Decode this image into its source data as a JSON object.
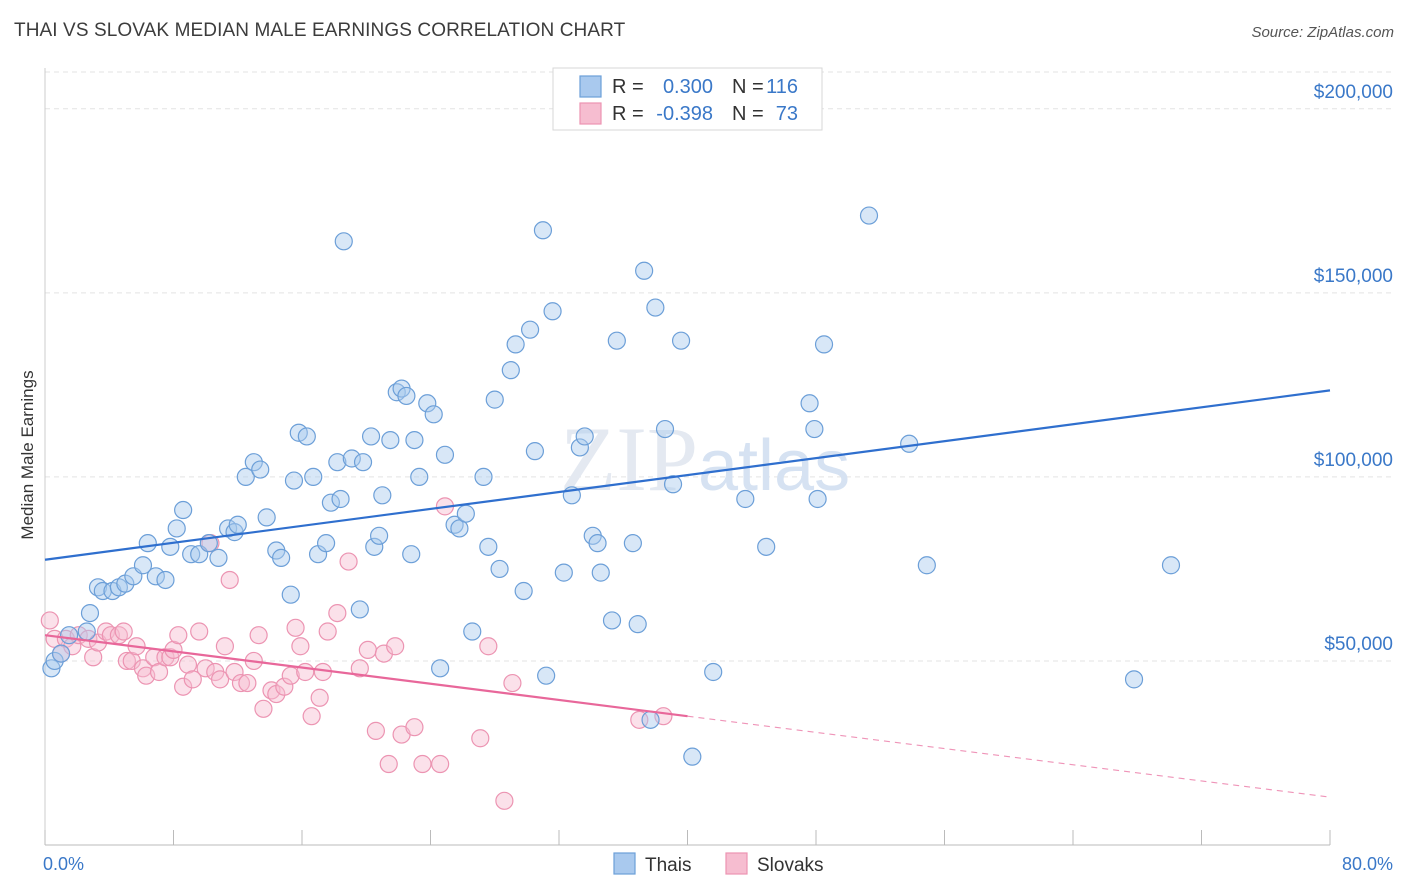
{
  "title": "THAI VS SLOVAK MEDIAN MALE EARNINGS CORRELATION CHART",
  "source": "Source: ZipAtlas.com",
  "watermark": "ZIPatlas",
  "colors": {
    "thais_fill": "#a9c9ee",
    "thais_stroke": "#6c9fd8",
    "thais_line": "#2f6fce",
    "slovaks_fill": "#f6bdd0",
    "slovaks_stroke": "#ec94b2",
    "slovaks_line": "#e8679a",
    "grid": "#e3e3e3",
    "axis_text": "#3a78c8"
  },
  "legend": {
    "rows": [
      {
        "r_label": "R =",
        "r_value": "0.300",
        "n_label": "N =",
        "n_value": "116"
      },
      {
        "r_label": "R =",
        "r_value": "-0.398",
        "n_label": "N =",
        "n_value": "73"
      }
    ]
  },
  "chart_data": {
    "type": "scatter",
    "title": "THAI VS SLOVAK MEDIAN MALE EARNINGS CORRELATION CHART",
    "xlabel": "",
    "ylabel": "Median Male Earnings",
    "xlim": [
      0,
      80
    ],
    "ylim": [
      0,
      210000
    ],
    "x_tick_labels": [
      "0.0%",
      "80.0%"
    ],
    "y_ticks": [
      50000,
      100000,
      150000,
      200000
    ],
    "y_tick_labels": [
      "$50,000",
      "$100,000",
      "$150,000",
      "$200,000"
    ],
    "grid": true,
    "legend_position": "top-center",
    "series": [
      {
        "name": "Thais",
        "r": 0.3,
        "n": 116,
        "trend": {
          "x": [
            0,
            80
          ],
          "y": [
            77500,
            123500
          ]
        },
        "points": [
          [
            0.4,
            48000
          ],
          [
            0.6,
            50000
          ],
          [
            1.0,
            52000
          ],
          [
            1.5,
            57000
          ],
          [
            2.6,
            58000
          ],
          [
            2.8,
            63000
          ],
          [
            3.3,
            70000
          ],
          [
            3.6,
            69000
          ],
          [
            4.2,
            69000
          ],
          [
            4.6,
            70000
          ],
          [
            5.0,
            71000
          ],
          [
            5.5,
            73000
          ],
          [
            6.1,
            76000
          ],
          [
            6.4,
            82000
          ],
          [
            6.9,
            73000
          ],
          [
            7.5,
            72000
          ],
          [
            7.8,
            81000
          ],
          [
            8.2,
            86000
          ],
          [
            8.6,
            91000
          ],
          [
            9.1,
            79000
          ],
          [
            9.6,
            79000
          ],
          [
            10.2,
            82000
          ],
          [
            10.8,
            78000
          ],
          [
            11.4,
            86000
          ],
          [
            11.8,
            85000
          ],
          [
            12.0,
            87000
          ],
          [
            12.5,
            100000
          ],
          [
            13.0,
            104000
          ],
          [
            13.4,
            102000
          ],
          [
            13.8,
            89000
          ],
          [
            14.4,
            80000
          ],
          [
            14.7,
            78000
          ],
          [
            15.3,
            68000
          ],
          [
            15.5,
            99000
          ],
          [
            15.8,
            112000
          ],
          [
            16.3,
            111000
          ],
          [
            16.7,
            100000
          ],
          [
            17.0,
            79000
          ],
          [
            17.5,
            82000
          ],
          [
            17.8,
            93000
          ],
          [
            18.2,
            104000
          ],
          [
            18.4,
            94000
          ],
          [
            18.6,
            164000
          ],
          [
            19.1,
            105000
          ],
          [
            19.6,
            64000
          ],
          [
            19.8,
            104000
          ],
          [
            20.3,
            111000
          ],
          [
            20.5,
            81000
          ],
          [
            20.8,
            84000
          ],
          [
            21.0,
            95000
          ],
          [
            21.5,
            110000
          ],
          [
            21.9,
            123000
          ],
          [
            22.2,
            124000
          ],
          [
            22.5,
            122000
          ],
          [
            22.8,
            79000
          ],
          [
            23.0,
            110000
          ],
          [
            23.3,
            100000
          ],
          [
            23.8,
            120000
          ],
          [
            24.2,
            117000
          ],
          [
            24.6,
            48000
          ],
          [
            24.9,
            106000
          ],
          [
            25.5,
            87000
          ],
          [
            25.8,
            86000
          ],
          [
            26.2,
            90000
          ],
          [
            26.6,
            58000
          ],
          [
            27.3,
            100000
          ],
          [
            27.6,
            81000
          ],
          [
            28.0,
            121000
          ],
          [
            28.3,
            75000
          ],
          [
            29.0,
            129000
          ],
          [
            29.3,
            136000
          ],
          [
            29.8,
            69000
          ],
          [
            30.2,
            140000
          ],
          [
            30.5,
            107000
          ],
          [
            31.0,
            167000
          ],
          [
            31.2,
            46000
          ],
          [
            31.6,
            145000
          ],
          [
            32.3,
            74000
          ],
          [
            32.8,
            95000
          ],
          [
            33.3,
            108000
          ],
          [
            33.6,
            111000
          ],
          [
            34.1,
            84000
          ],
          [
            34.4,
            82000
          ],
          [
            34.6,
            74000
          ],
          [
            35.3,
            61000
          ],
          [
            35.6,
            137000
          ],
          [
            36.6,
            82000
          ],
          [
            36.9,
            60000
          ],
          [
            37.3,
            156000
          ],
          [
            37.7,
            34000
          ],
          [
            38.0,
            146000
          ],
          [
            38.6,
            113000
          ],
          [
            39.1,
            98000
          ],
          [
            39.6,
            137000
          ],
          [
            40.3,
            24000
          ],
          [
            41.6,
            47000
          ],
          [
            43.6,
            94000
          ],
          [
            44.9,
            81000
          ],
          [
            47.6,
            120000
          ],
          [
            47.9,
            113000
          ],
          [
            48.1,
            94000
          ],
          [
            48.5,
            136000
          ],
          [
            51.3,
            171000
          ],
          [
            53.8,
            109000
          ],
          [
            54.9,
            76000
          ],
          [
            67.8,
            45000
          ],
          [
            70.1,
            76000
          ]
        ]
      },
      {
        "name": "Slovaks",
        "r": -0.398,
        "n": 73,
        "trend": {
          "x": [
            0,
            40
          ],
          "y": [
            57000,
            35000
          ]
        },
        "trend_dashed": {
          "x": [
            40,
            80
          ],
          "y": [
            35000,
            13000
          ]
        },
        "points": [
          [
            0.3,
            61000
          ],
          [
            0.6,
            56000
          ],
          [
            1.0,
            52000
          ],
          [
            1.3,
            56000
          ],
          [
            1.7,
            54000
          ],
          [
            2.1,
            57000
          ],
          [
            2.7,
            56000
          ],
          [
            3.0,
            51000
          ],
          [
            3.3,
            55000
          ],
          [
            3.8,
            58000
          ],
          [
            4.1,
            57000
          ],
          [
            4.6,
            57000
          ],
          [
            4.9,
            58000
          ],
          [
            5.1,
            50000
          ],
          [
            5.4,
            50000
          ],
          [
            5.7,
            54000
          ],
          [
            6.1,
            48000
          ],
          [
            6.3,
            46000
          ],
          [
            6.8,
            51000
          ],
          [
            7.1,
            47000
          ],
          [
            7.5,
            51000
          ],
          [
            7.8,
            51000
          ],
          [
            8.0,
            53000
          ],
          [
            8.3,
            57000
          ],
          [
            8.6,
            43000
          ],
          [
            8.9,
            49000
          ],
          [
            9.2,
            45000
          ],
          [
            9.6,
            58000
          ],
          [
            10.0,
            48000
          ],
          [
            10.3,
            82000
          ],
          [
            10.6,
            47000
          ],
          [
            10.9,
            45000
          ],
          [
            11.2,
            54000
          ],
          [
            11.5,
            72000
          ],
          [
            11.8,
            47000
          ],
          [
            12.2,
            44000
          ],
          [
            12.6,
            44000
          ],
          [
            13.0,
            50000
          ],
          [
            13.3,
            57000
          ],
          [
            13.6,
            37000
          ],
          [
            14.1,
            42000
          ],
          [
            14.4,
            41000
          ],
          [
            14.9,
            43000
          ],
          [
            15.3,
            46000
          ],
          [
            15.6,
            59000
          ],
          [
            15.9,
            54000
          ],
          [
            16.2,
            47000
          ],
          [
            16.6,
            35000
          ],
          [
            17.1,
            40000
          ],
          [
            17.3,
            47000
          ],
          [
            17.6,
            58000
          ],
          [
            18.2,
            63000
          ],
          [
            18.9,
            77000
          ],
          [
            19.6,
            48000
          ],
          [
            20.1,
            53000
          ],
          [
            20.6,
            31000
          ],
          [
            21.1,
            52000
          ],
          [
            21.4,
            22000
          ],
          [
            21.8,
            54000
          ],
          [
            22.2,
            30000
          ],
          [
            23.0,
            32000
          ],
          [
            23.5,
            22000
          ],
          [
            24.6,
            22000
          ],
          [
            24.9,
            92000
          ],
          [
            27.1,
            29000
          ],
          [
            27.6,
            54000
          ],
          [
            28.6,
            12000
          ],
          [
            29.1,
            44000
          ],
          [
            37.0,
            34000
          ],
          [
            38.5,
            35000
          ]
        ]
      }
    ]
  },
  "bottom_legend": [
    {
      "label": "Thais"
    },
    {
      "label": "Slovaks"
    }
  ]
}
